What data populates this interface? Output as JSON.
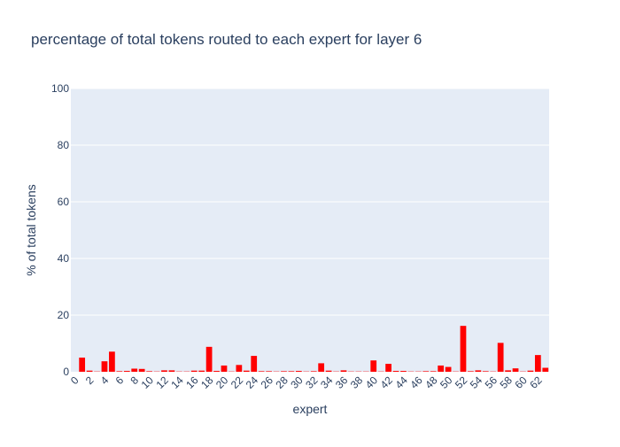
{
  "colors": {
    "background": "#ffffff",
    "plot_background": "#e5ecf6",
    "grid": "#ffffff",
    "bar": "#ff0000",
    "text": "#2a3f5f"
  },
  "chart_data": {
    "type": "bar",
    "title": "percentage of total tokens routed to each expert for layer 6",
    "xlabel": "expert",
    "ylabel": "% of total tokens",
    "ylim": [
      0,
      100
    ],
    "yticks": [
      0,
      20,
      40,
      60,
      80,
      100
    ],
    "xticks": [
      0,
      2,
      4,
      6,
      8,
      10,
      12,
      14,
      16,
      18,
      20,
      22,
      24,
      26,
      28,
      30,
      32,
      34,
      36,
      38,
      40,
      42,
      44,
      46,
      48,
      50,
      52,
      54,
      56,
      58,
      60,
      62
    ],
    "grid": true,
    "categories": [
      0,
      1,
      2,
      3,
      4,
      5,
      6,
      7,
      8,
      9,
      10,
      11,
      12,
      13,
      14,
      15,
      16,
      17,
      18,
      19,
      20,
      21,
      22,
      23,
      24,
      25,
      26,
      27,
      28,
      29,
      30,
      31,
      32,
      33,
      34,
      35,
      36,
      37,
      38,
      39,
      40,
      41,
      42,
      43,
      44,
      45,
      46,
      47,
      48,
      49,
      50,
      51,
      52,
      53,
      54,
      55,
      56,
      57,
      58,
      59,
      60,
      61,
      62,
      63
    ],
    "values": [
      0,
      5.0,
      0.4,
      0.1,
      3.7,
      7.1,
      0.2,
      0.3,
      1.1,
      1.0,
      0.2,
      0.1,
      0.5,
      0.5,
      0.1,
      0.1,
      0.4,
      0.4,
      8.8,
      0.3,
      2.2,
      0.1,
      2.4,
      0.4,
      5.6,
      0.2,
      0.2,
      0.1,
      0.2,
      0.2,
      0.3,
      0.1,
      0.2,
      3.0,
      0.4,
      0.1,
      0.5,
      0.1,
      0.1,
      0.1,
      4.0,
      0.1,
      2.8,
      0.3,
      0.3,
      0.1,
      0.1,
      0.2,
      0.2,
      2.2,
      1.7,
      0.1,
      16.2,
      0.2,
      0.5,
      0.2,
      0.1,
      10.2,
      0.5,
      1.2,
      0.1,
      0.4,
      5.9,
      1.4
    ]
  }
}
